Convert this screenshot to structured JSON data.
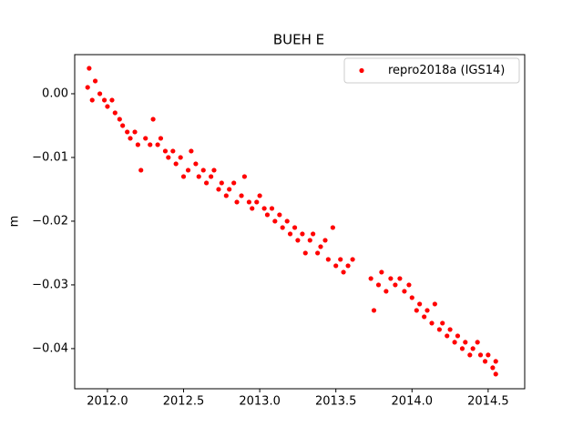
{
  "chart_data": {
    "type": "scatter",
    "title": "BUEH E",
    "y_label": "m",
    "x": [
      2011.87,
      2011.88,
      2011.9,
      2011.92,
      2011.95,
      2011.98,
      2012.0,
      2012.03,
      2012.05,
      2012.08,
      2012.1,
      2012.13,
      2012.15,
      2012.18,
      2012.2,
      2012.22,
      2012.25,
      2012.28,
      2012.3,
      2012.33,
      2012.35,
      2012.38,
      2012.4,
      2012.43,
      2012.45,
      2012.48,
      2012.5,
      2012.53,
      2012.55,
      2012.58,
      2012.6,
      2012.63,
      2012.65,
      2012.68,
      2012.7,
      2012.73,
      2012.75,
      2012.78,
      2012.8,
      2012.83,
      2012.85,
      2012.88,
      2012.9,
      2012.93,
      2012.95,
      2012.98,
      2013.0,
      2013.03,
      2013.05,
      2013.08,
      2013.1,
      2013.13,
      2013.15,
      2013.18,
      2013.2,
      2013.23,
      2013.25,
      2013.28,
      2013.3,
      2013.33,
      2013.35,
      2013.38,
      2013.4,
      2013.43,
      2013.45,
      2013.48,
      2013.5,
      2013.53,
      2013.55,
      2013.58,
      2013.61,
      2013.73,
      2013.75,
      2013.78,
      2013.8,
      2013.83,
      2013.86,
      2013.89,
      2013.92,
      2013.95,
      2013.98,
      2014.0,
      2014.03,
      2014.05,
      2014.08,
      2014.1,
      2014.13,
      2014.15,
      2014.18,
      2014.2,
      2014.23,
      2014.25,
      2014.28,
      2014.3,
      2014.33,
      2014.35,
      2014.38,
      2014.4,
      2014.43,
      2014.45,
      2014.48,
      2014.5,
      2014.53,
      2014.55,
      2014.55
    ],
    "series": [
      {
        "name": "repro2018a (IGS14)",
        "color": "#ff0000",
        "values": [
          0.001,
          0.004,
          -0.001,
          0.002,
          0.0,
          -0.001,
          -0.002,
          -0.001,
          -0.003,
          -0.004,
          -0.005,
          -0.006,
          -0.007,
          -0.006,
          -0.008,
          -0.012,
          -0.007,
          -0.008,
          -0.004,
          -0.008,
          -0.007,
          -0.009,
          -0.01,
          -0.009,
          -0.011,
          -0.01,
          -0.013,
          -0.012,
          -0.009,
          -0.011,
          -0.013,
          -0.012,
          -0.014,
          -0.013,
          -0.012,
          -0.015,
          -0.014,
          -0.016,
          -0.015,
          -0.014,
          -0.017,
          -0.016,
          -0.013,
          -0.017,
          -0.018,
          -0.017,
          -0.016,
          -0.018,
          -0.019,
          -0.018,
          -0.02,
          -0.019,
          -0.021,
          -0.02,
          -0.022,
          -0.021,
          -0.023,
          -0.022,
          -0.025,
          -0.023,
          -0.022,
          -0.025,
          -0.024,
          -0.023,
          -0.026,
          -0.021,
          -0.027,
          -0.026,
          -0.028,
          -0.027,
          -0.026,
          -0.029,
          -0.034,
          -0.03,
          -0.028,
          -0.031,
          -0.029,
          -0.03,
          -0.029,
          -0.031,
          -0.03,
          -0.032,
          -0.034,
          -0.033,
          -0.035,
          -0.034,
          -0.036,
          -0.033,
          -0.037,
          -0.036,
          -0.038,
          -0.037,
          -0.039,
          -0.038,
          -0.04,
          -0.039,
          -0.041,
          -0.04,
          -0.039,
          -0.041,
          -0.042,
          -0.041,
          -0.043,
          -0.042,
          -0.044
        ]
      }
    ],
    "xlim": [
      2011.785,
      2014.74
    ],
    "ylim": [
      -0.0463,
      0.00614
    ],
    "xticks": [
      {
        "value": 2012.0,
        "label": "2012.0"
      },
      {
        "value": 2012.5,
        "label": "2012.5"
      },
      {
        "value": 2013.0,
        "label": "2013.0"
      },
      {
        "value": 2013.5,
        "label": "2013.5"
      },
      {
        "value": 2014.0,
        "label": "2014.0"
      },
      {
        "value": 2014.5,
        "label": "2014.5"
      }
    ],
    "yticks": [
      {
        "value": -0.04,
        "label": "−0.04"
      },
      {
        "value": -0.03,
        "label": "−0.03"
      },
      {
        "value": -0.02,
        "label": "−0.02"
      },
      {
        "value": -0.01,
        "label": "−0.01"
      },
      {
        "value": 0.0,
        "label": "0.00"
      }
    ],
    "grid": false,
    "legend": "upper right"
  }
}
